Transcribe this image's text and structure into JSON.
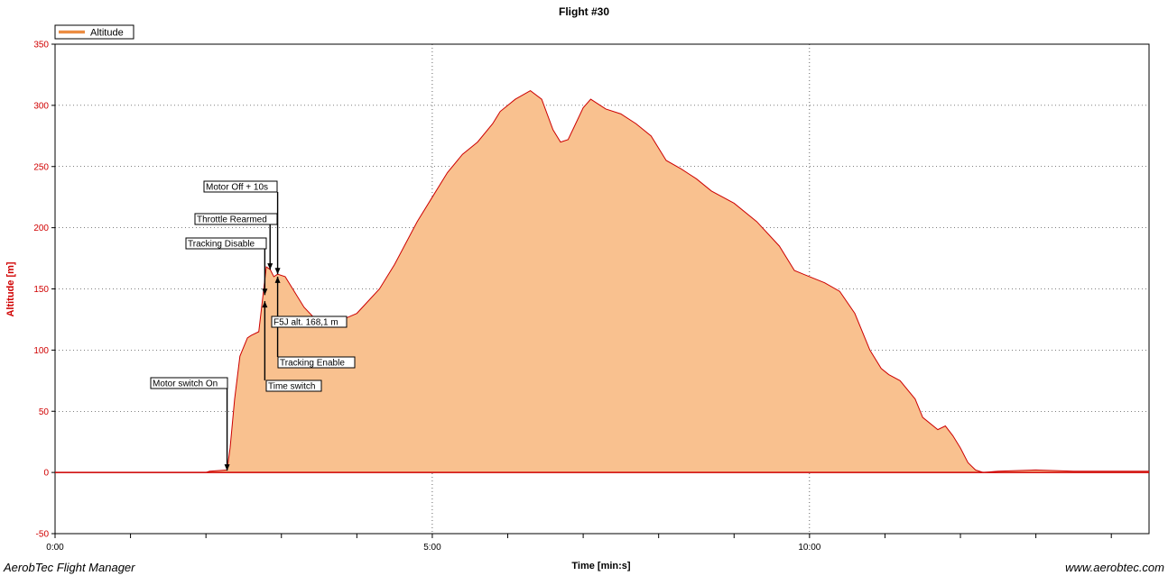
{
  "chart_data": {
    "type": "area",
    "title": "Flight #30",
    "xlabel": "Time [min:s]",
    "ylabel": "Altitude [m]",
    "xlim": [
      0,
      14.5
    ],
    "ylim": [
      -50,
      350
    ],
    "y_ticks": [
      -50,
      0,
      50,
      100,
      150,
      200,
      250,
      300,
      350
    ],
    "x_ticks": [
      0,
      1,
      2,
      3,
      4,
      5,
      6,
      7,
      8,
      9,
      10,
      11,
      12,
      13,
      14
    ],
    "x_tick_labels": [
      {
        "value": 0,
        "label": "0:00"
      },
      {
        "value": 5,
        "label": "5:00"
      },
      {
        "value": 10,
        "label": "10:00"
      }
    ],
    "grid_x": [
      5,
      10
    ],
    "grid_y": [
      0,
      50,
      100,
      150,
      200,
      250,
      300
    ],
    "legend": {
      "position": "top-left",
      "entries": [
        "Altitude"
      ]
    },
    "colors": {
      "line": "#cc0000",
      "fill": "#f9c18f",
      "axis_text": "#d00000"
    },
    "series": [
      {
        "name": "Altitude",
        "x": [
          0,
          1.0,
          2.0,
          2.05,
          2.28,
          2.32,
          2.38,
          2.45,
          2.55,
          2.6,
          2.7,
          2.8,
          2.85,
          2.9,
          2.95,
          3.05,
          3.15,
          3.3,
          3.5,
          3.7,
          4.0,
          4.3,
          4.5,
          4.8,
          5.0,
          5.2,
          5.4,
          5.6,
          5.8,
          5.9,
          6.0,
          6.1,
          6.3,
          6.45,
          6.6,
          6.7,
          6.8,
          6.9,
          7.0,
          7.1,
          7.3,
          7.5,
          7.7,
          7.9,
          8.1,
          8.3,
          8.5,
          8.7,
          9.0,
          9.3,
          9.6,
          9.8,
          10.0,
          10.2,
          10.4,
          10.6,
          10.8,
          10.95,
          11.05,
          11.2,
          11.4,
          11.5,
          11.7,
          11.8,
          11.9,
          12.0,
          12.1,
          12.2,
          12.3,
          12.5,
          13.0,
          13.5,
          14.0,
          14.5
        ],
        "y": [
          0,
          0,
          0,
          1,
          2,
          20,
          60,
          95,
          110,
          112,
          115,
          168,
          166,
          160,
          162,
          160,
          150,
          135,
          122,
          122,
          130,
          150,
          170,
          205,
          225,
          245,
          260,
          270,
          285,
          295,
          300,
          305,
          312,
          305,
          280,
          270,
          272,
          285,
          298,
          305,
          297,
          293,
          285,
          275,
          255,
          248,
          240,
          230,
          220,
          205,
          185,
          165,
          160,
          155,
          148,
          130,
          100,
          85,
          80,
          75,
          60,
          45,
          35,
          38,
          30,
          20,
          8,
          2,
          0,
          1,
          2,
          1,
          1,
          1
        ]
      }
    ],
    "annotations": [
      {
        "x": 2.28,
        "y": 0,
        "text": "Motor switch On"
      },
      {
        "x": 2.78,
        "y": 140,
        "text": "Time switch"
      },
      {
        "x": 2.78,
        "y": 145,
        "text": "Tracking Disable"
      },
      {
        "x": 2.85,
        "y": 168,
        "text": "Throttle Rearmed"
      },
      {
        "x": 2.95,
        "y": 162,
        "text": "Motor Off + 10s"
      },
      {
        "x": 2.95,
        "y": 160,
        "text": "Tracking Enable"
      },
      {
        "x": 2.85,
        "y": 168.1,
        "text": "F5J alt. 168,1 m"
      }
    ]
  },
  "footer": {
    "left": "AerobTec Flight Manager",
    "right": "www.aerobtec.com"
  }
}
